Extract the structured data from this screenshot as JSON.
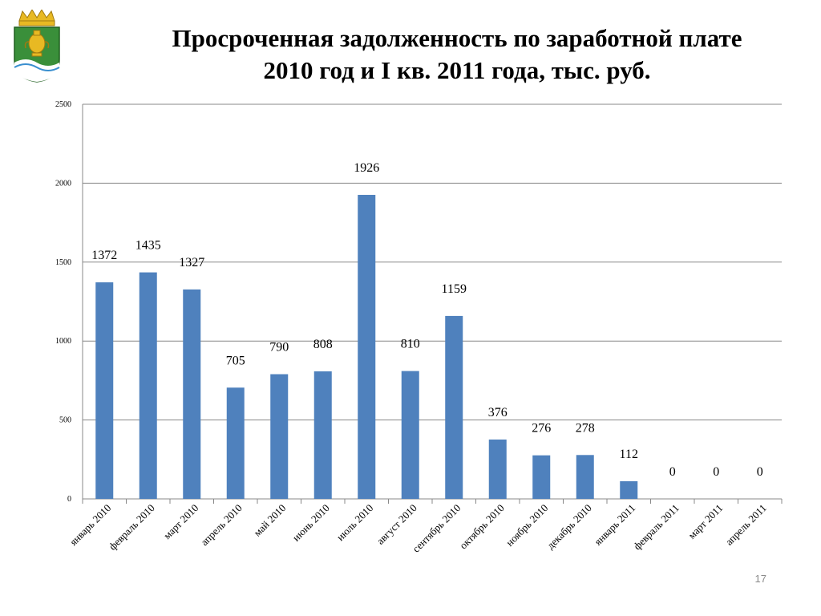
{
  "title_line1": "Просроченная задолженность по заработной плате",
  "title_line2": "2010 год и I кв. 2011 года, тыс. руб.",
  "slide_number": "17",
  "logo_icon": "coat-of-arms-icon",
  "chart_data": {
    "type": "bar",
    "categories": [
      "январь 2010",
      "февраль 2010",
      "март 2010",
      "апрель 2010",
      "май 2010",
      "июнь 2010",
      "июль 2010",
      "август 2010",
      "сентябрь 2010",
      "октябрь 2010",
      "ноябрь 2010",
      "декабрь 2010",
      "январь 2011",
      "февраль 2011",
      "март 2011",
      "апрель 2011"
    ],
    "values": [
      1372,
      1435,
      1327,
      705,
      790,
      808,
      1926,
      810,
      1159,
      376,
      276,
      278,
      112,
      0,
      0,
      0
    ],
    "data_labels": [
      "1372",
      "1435",
      "1327",
      "705",
      "790",
      "808",
      "1926",
      "810",
      "1159",
      "376",
      "276",
      "278",
      "112",
      "0",
      "0",
      "0"
    ],
    "yticks": [
      0,
      500,
      1000,
      1500,
      2000,
      2500
    ],
    "ylim": [
      0,
      2500
    ],
    "grid": true,
    "bar_color": "#4f81bd",
    "legend": "none"
  }
}
